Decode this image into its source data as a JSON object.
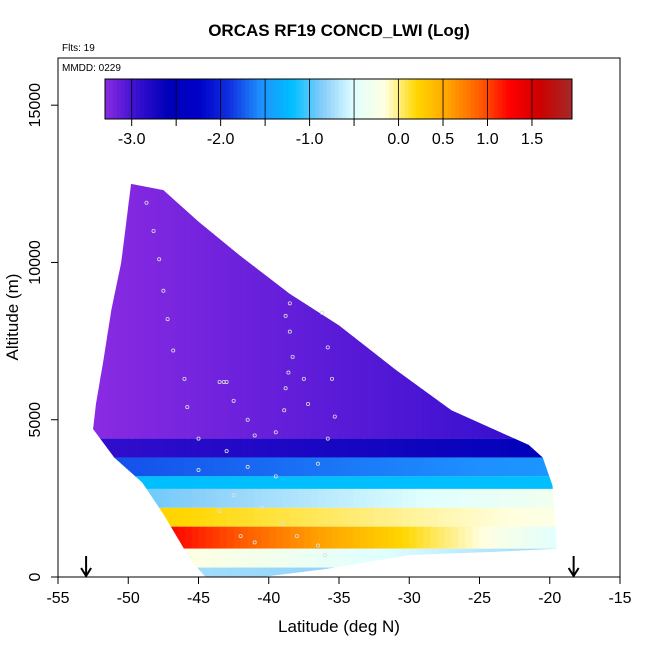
{
  "chart_data": {
    "type": "heatmap",
    "title": "ORCAS RF19 CONCD_LWI (Log)",
    "annotations": [
      "Flts: 19",
      "MMDD: 0229"
    ],
    "xlabel": "Latitude (deg N)",
    "ylabel": "Altitude (m)",
    "xlim": [
      -55,
      -15
    ],
    "ylim": [
      0,
      16500
    ],
    "x_ticks": [
      -55,
      -50,
      -45,
      -40,
      -35,
      -30,
      -25,
      -20,
      -15
    ],
    "y_ticks": [
      0,
      5000,
      10000,
      15000
    ],
    "colorbar": {
      "ticks": [
        -3.0,
        -2.0,
        -1.0,
        0.0,
        0.5,
        1.0,
        1.5
      ],
      "tick_labels": [
        "-3.0",
        "-2.0",
        "-1.0",
        "0.0",
        "0.5",
        "1.0",
        "1.5"
      ],
      "range": [
        -3.3,
        1.95
      ],
      "colors": [
        "#8a2be2",
        "#3a10d0",
        "#0000b8",
        "#0000c8",
        "#1030e0",
        "#1e90ff",
        "#00bfff",
        "#87cefa",
        "#e0ffff",
        "#ffffe0",
        "#ffd700",
        "#ffa500",
        "#ff6000",
        "#ff0000",
        "#cc0000",
        "#a52a2a"
      ]
    },
    "markers": {
      "arrows_at_latitude": [
        -53,
        -18.3
      ]
    },
    "domain_outline": [
      [
        -49.8,
        12500
      ],
      [
        -47.5,
        12300
      ],
      [
        -45,
        11300
      ],
      [
        -42,
        10200
      ],
      [
        -38.5,
        9000
      ],
      [
        -35,
        8000
      ],
      [
        -31,
        6600
      ],
      [
        -27,
        5300
      ],
      [
        -21.5,
        4200
      ],
      [
        -20.5,
        3800
      ],
      [
        -19.8,
        2900
      ],
      [
        -19.5,
        900
      ],
      [
        -24,
        800
      ],
      [
        -30,
        700
      ],
      [
        -36,
        250
      ],
      [
        -40.5,
        0
      ],
      [
        -44.5,
        0
      ],
      [
        -45.5,
        500
      ],
      [
        -47.5,
        2000
      ],
      [
        -49,
        3000
      ],
      [
        -51,
        3800
      ],
      [
        -52.5,
        4700
      ],
      [
        -52.3,
        5500
      ],
      [
        -51.8,
        6800
      ],
      [
        -51.2,
        8500
      ],
      [
        -50.5,
        10000
      ]
    ],
    "layers": [
      {
        "alt_range": [
          4400,
          12500
        ],
        "value_west": -3.3,
        "value_east": -2.9
      },
      {
        "alt_range": [
          3800,
          4400
        ],
        "value_west": -2.9,
        "value_east": -2.6
      },
      {
        "alt_range": [
          3200,
          3800
        ],
        "value_west": -1.8,
        "value_east": -1.5
      },
      {
        "alt_range": [
          2800,
          3200
        ],
        "value_west": -1.2,
        "value_east": -1.2
      },
      {
        "alt_range": [
          2200,
          2800
        ],
        "value_west": -1.0,
        "value_east": -0.3
      },
      {
        "alt_range": [
          1600,
          2200
        ],
        "value_west": 0.3,
        "value_east": -0.2
      },
      {
        "alt_range": [
          900,
          1600
        ],
        "value_west": 1.6,
        "value_east": -0.5
      },
      {
        "alt_range": [
          300,
          900
        ],
        "value_west": 0.0,
        "value_east": -0.8
      },
      {
        "alt_range": [
          0,
          300
        ],
        "value_west": -0.7,
        "value_east": -0.9
      }
    ],
    "flight_track_points": [
      [
        -48.7,
        11900
      ],
      [
        -48.2,
        11000
      ],
      [
        -47.8,
        10100
      ],
      [
        -47.5,
        9100
      ],
      [
        -47.2,
        8200
      ],
      [
        -46.8,
        7200
      ],
      [
        -46,
        6300
      ],
      [
        -45.8,
        5400
      ],
      [
        -45,
        4400
      ],
      [
        -43.5,
        6200
      ],
      [
        -43.2,
        6200
      ],
      [
        -43,
        6200
      ],
      [
        -42.5,
        5600
      ],
      [
        -41.5,
        5000
      ],
      [
        -41,
        4500
      ],
      [
        -38.5,
        8700
      ],
      [
        -38.8,
        8300
      ],
      [
        -38.5,
        7800
      ],
      [
        -38.3,
        7000
      ],
      [
        -38.6,
        6500
      ],
      [
        -38.8,
        6000
      ],
      [
        -38.9,
        5300
      ],
      [
        -39.5,
        4600
      ],
      [
        -37.5,
        6300
      ],
      [
        -37.2,
        5500
      ],
      [
        -36.2,
        8400
      ],
      [
        -35.8,
        7300
      ],
      [
        -35.5,
        6300
      ],
      [
        -35.3,
        5100
      ],
      [
        -35.8,
        4400
      ],
      [
        -43,
        4000
      ],
      [
        -41.5,
        3500
      ],
      [
        -39.5,
        3200
      ],
      [
        -36.5,
        3600
      ],
      [
        -45,
        3400
      ],
      [
        -42.5,
        2600
      ],
      [
        -40.5,
        2200
      ],
      [
        -39,
        1700
      ],
      [
        -38,
        1300
      ],
      [
        -36.5,
        1000
      ],
      [
        -36,
        700
      ],
      [
        -41,
        1100
      ],
      [
        -42,
        1300
      ],
      [
        -43.5,
        2100
      ]
    ]
  }
}
